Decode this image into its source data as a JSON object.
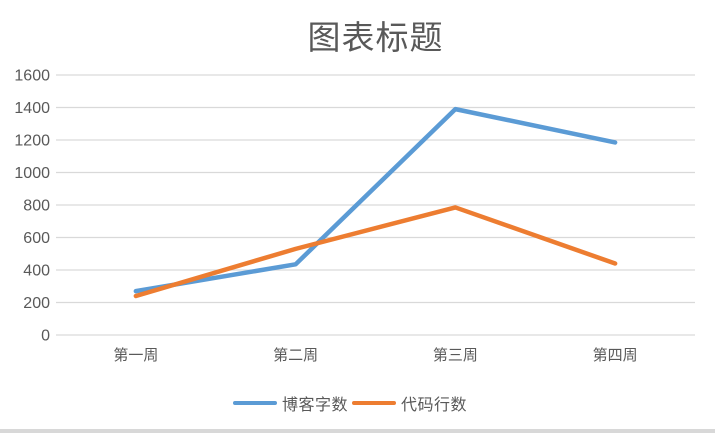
{
  "chart_data": {
    "type": "line",
    "title": "图表标题",
    "categories": [
      "第一周",
      "第二周",
      "第三周",
      "第四周"
    ],
    "series": [
      {
        "name": "博客字数",
        "color": "#5B9BD5",
        "values": [
          270,
          435,
          1390,
          1185
        ]
      },
      {
        "name": "代码行数",
        "color": "#ED7D31",
        "values": [
          240,
          530,
          785,
          440
        ]
      }
    ],
    "xlabel": "",
    "ylabel": "",
    "ylim": [
      0,
      1600
    ],
    "yticks": [
      0,
      200,
      400,
      600,
      800,
      1000,
      1200,
      1400,
      1600
    ],
    "grid": true,
    "legend_position": "bottom"
  },
  "colors": {
    "grid": "#D9D9D9",
    "axis_text": "#595959",
    "title_text": "#595959",
    "background": "#FFFFFF",
    "bottom_bar": "#D8D8D8"
  }
}
